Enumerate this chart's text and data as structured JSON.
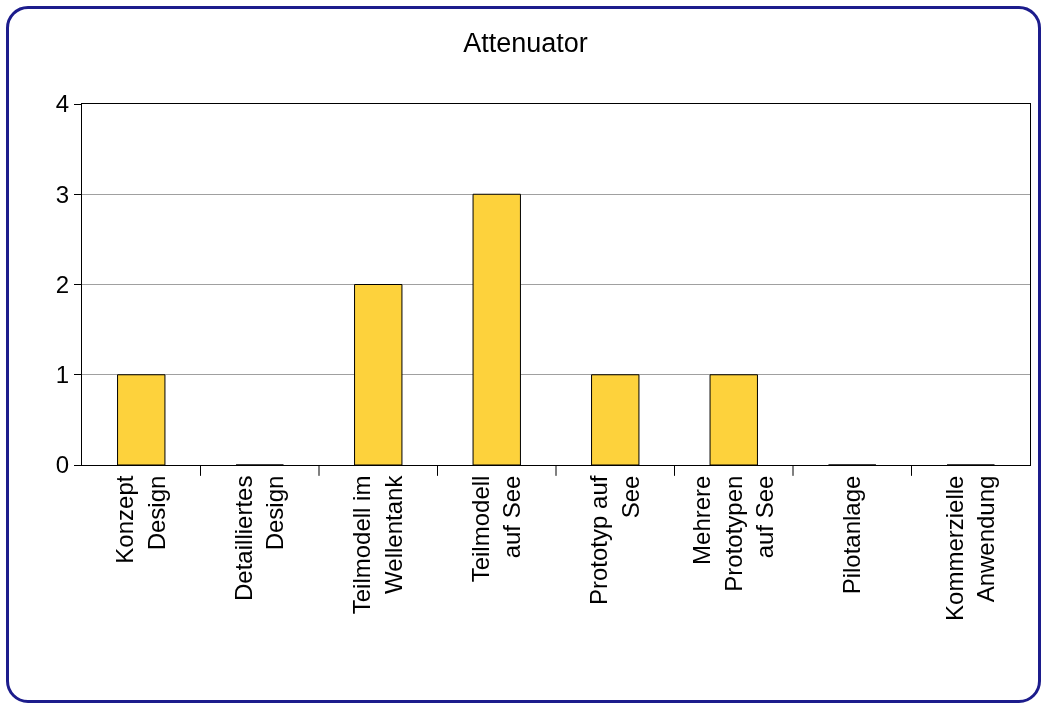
{
  "chart_data": {
    "type": "bar",
    "title": "Attenuator",
    "categories": [
      "Konzept\nDesign",
      "Detailliertes\nDesign",
      "Teilmodell im\nWellentank",
      "Teilmodell\nauf See",
      "Prototyp auf\nSee",
      "Mehrere\nPrototypen\nauf See",
      "Pilotanlage",
      "Kommerzielle\nAnwendung"
    ],
    "values": [
      1,
      0,
      2,
      3,
      1,
      1,
      0,
      0
    ],
    "color": "#fdd23c",
    "ylim": [
      0,
      4
    ],
    "yticks": [
      0,
      1,
      2,
      3,
      4
    ],
    "grid": "y"
  }
}
